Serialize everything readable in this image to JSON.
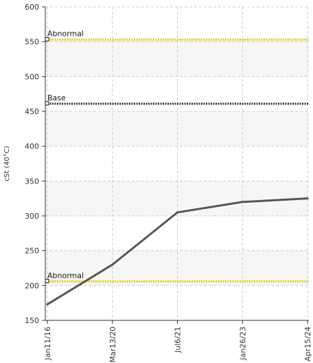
{
  "chart_data": {
    "type": "line",
    "title": "",
    "ylabel": "cSt (40°C)",
    "xlabel": "",
    "ylim": [
      150,
      600
    ],
    "yticks": [
      150,
      200,
      250,
      300,
      350,
      400,
      450,
      500,
      550,
      600
    ],
    "x_categories": [
      "Jan11/16",
      "Mar13/20",
      "Jul6/21",
      "Jan26/23",
      "Apr15/24"
    ],
    "series": [
      {
        "values": [
          173,
          230,
          305,
          320,
          325
        ],
        "color": "#555555"
      }
    ],
    "reference_lines": [
      {
        "label": "Abnormal",
        "value": 553,
        "color": "#f2c200",
        "style": "dotted"
      },
      {
        "label": "Base",
        "value": 461,
        "color": "#333333",
        "style": "dotted"
      },
      {
        "label": "Abnormal",
        "value": 206,
        "color": "#f2c200",
        "style": "dotted"
      }
    ],
    "bands": [
      {
        "from": 500,
        "to": 553,
        "color": "#f6f6f6"
      },
      {
        "from": 400,
        "to": 450,
        "color": "#f6f6f6"
      },
      {
        "from": 300,
        "to": 350,
        "color": "#f6f6f6"
      },
      {
        "from": 200,
        "to": 250,
        "color": "#f6f6f6"
      }
    ],
    "grid": true,
    "legend": "none"
  }
}
